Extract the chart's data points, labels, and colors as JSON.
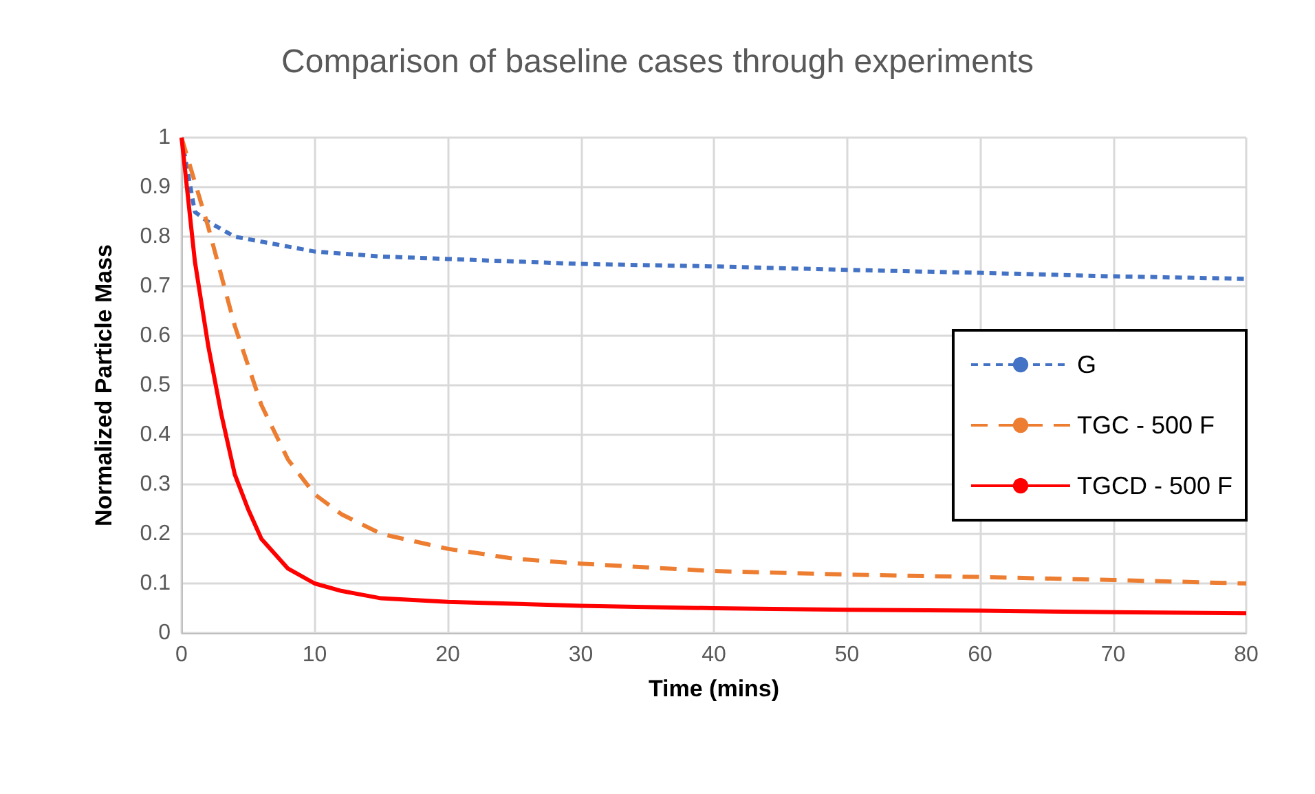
{
  "chart_data": {
    "type": "line",
    "title": "Comparison of baseline cases through experiments",
    "xlabel": "Time (mins)",
    "ylabel": "Normalized Particle Mass",
    "xlim": [
      0,
      80
    ],
    "xticks": [
      0,
      10,
      20,
      30,
      40,
      50,
      60,
      70,
      80
    ],
    "ylim": [
      0,
      1
    ],
    "yticks": [
      0,
      0.1,
      0.2,
      0.3,
      0.4,
      0.5,
      0.6,
      0.7,
      0.8,
      0.9,
      1
    ],
    "grid": true,
    "legend": "right",
    "marker": "none",
    "series": [
      {
        "name": "G",
        "color": "#4472c4",
        "line_style": "dotted",
        "x": [
          0,
          1,
          2,
          4,
          6,
          8,
          10,
          15,
          20,
          30,
          40,
          50,
          60,
          70,
          80
        ],
        "values": [
          1,
          0.85,
          0.83,
          0.8,
          0.79,
          0.78,
          0.77,
          0.76,
          0.755,
          0.745,
          0.74,
          0.733,
          0.727,
          0.72,
          0.715
        ]
      },
      {
        "name": "TGC - 500 F",
        "color": "#ed7d31",
        "line_style": "dashed",
        "x": [
          0,
          2,
          4,
          6,
          8,
          10,
          12,
          15,
          20,
          25,
          30,
          40,
          50,
          60,
          70,
          80
        ],
        "values": [
          1,
          0.82,
          0.62,
          0.46,
          0.35,
          0.28,
          0.24,
          0.2,
          0.17,
          0.15,
          0.14,
          0.125,
          0.118,
          0.113,
          0.107,
          0.1
        ]
      },
      {
        "name": "TGCD - 500 F",
        "color": "#ff0000",
        "line_style": "solid",
        "x": [
          0,
          1,
          2,
          3,
          4,
          5,
          6,
          8,
          10,
          12,
          15,
          20,
          30,
          40,
          50,
          60,
          70,
          80
        ],
        "values": [
          1,
          0.75,
          0.58,
          0.44,
          0.32,
          0.25,
          0.19,
          0.13,
          0.1,
          0.085,
          0.07,
          0.063,
          0.055,
          0.05,
          0.047,
          0.045,
          0.042,
          0.04
        ]
      }
    ]
  }
}
